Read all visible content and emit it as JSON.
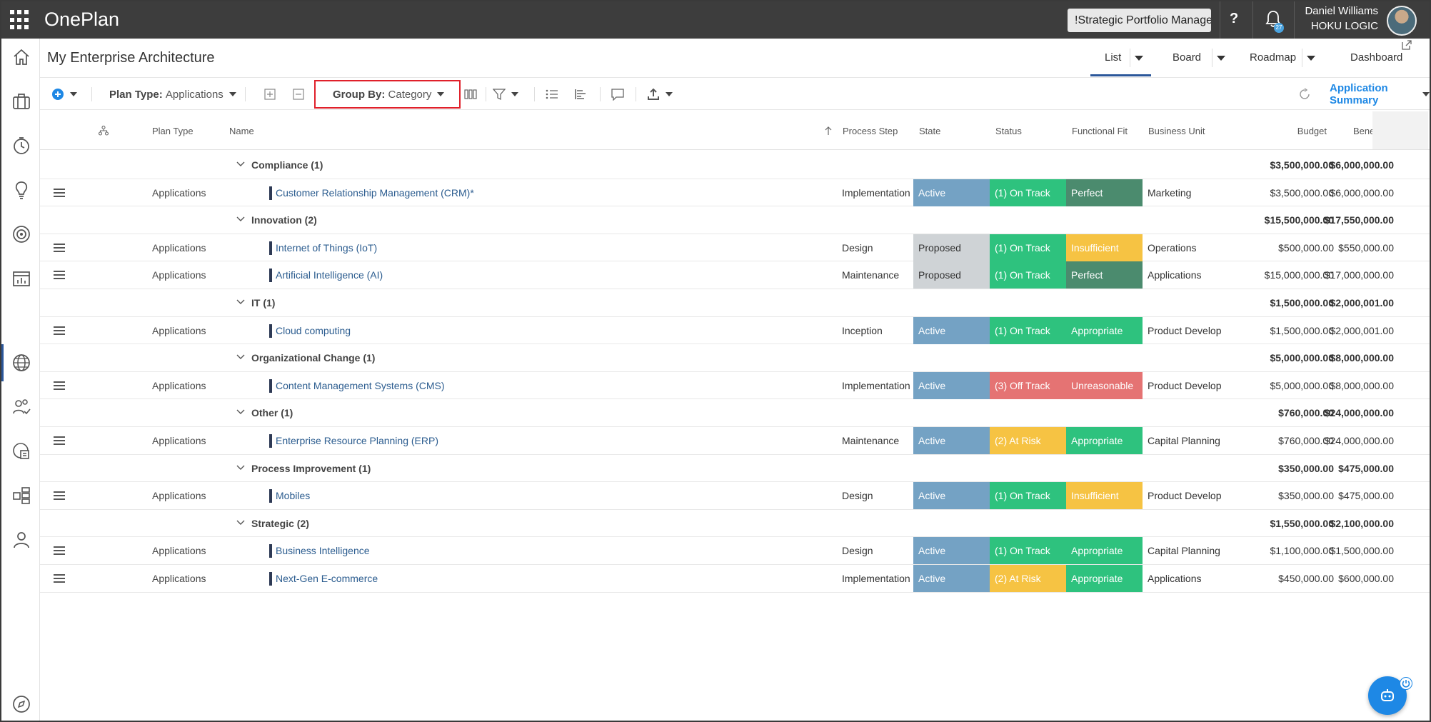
{
  "topbar": {
    "brand": "OnePlan",
    "scope": "!Strategic Portfolio Manager",
    "help": "?",
    "notification_count": "27",
    "user_name": "Daniel Williams",
    "user_org": "HOKU LOGIC"
  },
  "page": {
    "title": "My Enterprise Architecture",
    "views": [
      "List",
      "Board",
      "Roadmap",
      "Dashboard"
    ],
    "active_view": "List"
  },
  "toolbar": {
    "plan_type_label": "Plan Type:",
    "plan_type_value": "Applications",
    "group_by_label": "Group By:",
    "group_by_value": "Category",
    "summary": "Application Summary"
  },
  "columns": {
    "plan_type": "Plan Type",
    "name": "Name",
    "process_step": "Process Step",
    "state": "State",
    "status": "Status",
    "functional_fit": "Functional Fit",
    "business_unit": "Business Unit",
    "budget": "Budget",
    "benefits": "Benefits"
  },
  "colors": {
    "active": "#74a2c4",
    "proposed": "#cfd3d6",
    "on_track": "#2ec27e",
    "off_track": "#e57373",
    "at_risk": "#f6c343",
    "perfect": "#4b8b6e",
    "appropriate": "#2ec27e",
    "insufficient": "#f6c343",
    "unreasonable": "#e57373"
  },
  "rows": [
    {
      "kind": "group",
      "label": "Compliance (1)",
      "budget": "$3,500,000.00",
      "benefits": "$6,000,000.00"
    },
    {
      "kind": "item",
      "plan_type": "Applications",
      "name": "Customer Relationship Management (CRM)*",
      "process_step": "Implementation",
      "state": "Active",
      "state_color": "active",
      "status": "(1) On Track",
      "status_color": "on_track",
      "fit": "Perfect",
      "fit_color": "perfect",
      "unit": "Marketing",
      "budget": "$3,500,000.00",
      "benefits": "$6,000,000.00"
    },
    {
      "kind": "group",
      "label": "Innovation (2)",
      "budget": "$15,500,000.00",
      "benefits": "$17,550,000.00"
    },
    {
      "kind": "item",
      "plan_type": "Applications",
      "name": "Internet of Things (IoT)",
      "process_step": "Design",
      "state": "Proposed",
      "state_color": "proposed",
      "status": "(1) On Track",
      "status_color": "on_track",
      "fit": "Insufficient",
      "fit_color": "insufficient",
      "unit": "Operations",
      "budget": "$500,000.00",
      "benefits": "$550,000.00"
    },
    {
      "kind": "item",
      "plan_type": "Applications",
      "name": "Artificial Intelligence (AI)",
      "process_step": "Maintenance",
      "state": "Proposed",
      "state_color": "proposed",
      "status": "(1) On Track",
      "status_color": "on_track",
      "fit": "Perfect",
      "fit_color": "perfect",
      "unit": "Applications",
      "budget": "$15,000,000.00",
      "benefits": "$17,000,000.00"
    },
    {
      "kind": "group",
      "label": "IT (1)",
      "budget": "$1,500,000.00",
      "benefits": "$2,000,001.00"
    },
    {
      "kind": "item",
      "plan_type": "Applications",
      "name": "Cloud computing",
      "process_step": "Inception",
      "state": "Active",
      "state_color": "active",
      "status": "(1) On Track",
      "status_color": "on_track",
      "fit": "Appropriate",
      "fit_color": "appropriate",
      "unit": "Product Develop",
      "budget": "$1,500,000.00",
      "benefits": "$2,000,001.00"
    },
    {
      "kind": "group",
      "label": "Organizational Change (1)",
      "budget": "$5,000,000.00",
      "benefits": "$8,000,000.00"
    },
    {
      "kind": "item",
      "plan_type": "Applications",
      "name": "Content Management Systems (CMS)",
      "process_step": "Implementation",
      "state": "Active",
      "state_color": "active",
      "status": "(3) Off Track",
      "status_color": "off_track",
      "fit": "Unreasonable",
      "fit_color": "unreasonable",
      "unit": "Product Develop",
      "budget": "$5,000,000.00",
      "benefits": "$8,000,000.00"
    },
    {
      "kind": "group",
      "label": "Other (1)",
      "budget": "$760,000.00",
      "benefits": "$24,000,000.00"
    },
    {
      "kind": "item",
      "plan_type": "Applications",
      "name": "Enterprise Resource Planning (ERP)",
      "process_step": "Maintenance",
      "state": "Active",
      "state_color": "active",
      "status": "(2) At Risk",
      "status_color": "at_risk",
      "fit": "Appropriate",
      "fit_color": "appropriate",
      "unit": "Capital Planning",
      "budget": "$760,000.00",
      "benefits": "$24,000,000.00"
    },
    {
      "kind": "group",
      "label": "Process Improvement (1)",
      "budget": "$350,000.00",
      "benefits": "$475,000.00"
    },
    {
      "kind": "item",
      "plan_type": "Applications",
      "name": "Mobiles",
      "process_step": "Design",
      "state": "Active",
      "state_color": "active",
      "status": "(1) On Track",
      "status_color": "on_track",
      "fit": "Insufficient",
      "fit_color": "insufficient",
      "unit": "Product Develop",
      "budget": "$350,000.00",
      "benefits": "$475,000.00"
    },
    {
      "kind": "group",
      "label": "Strategic (2)",
      "budget": "$1,550,000.00",
      "benefits": "$2,100,000.00"
    },
    {
      "kind": "item",
      "plan_type": "Applications",
      "name": "Business Intelligence",
      "process_step": "Design",
      "state": "Active",
      "state_color": "active",
      "status": "(1) On Track",
      "status_color": "on_track",
      "fit": "Appropriate",
      "fit_color": "appropriate",
      "unit": "Capital Planning",
      "budget": "$1,100,000.00",
      "benefits": "$1,500,000.00"
    },
    {
      "kind": "item",
      "plan_type": "Applications",
      "name": "Next-Gen E-commerce",
      "process_step": "Implementation",
      "state": "Active",
      "state_color": "active",
      "status": "(2) At Risk",
      "status_color": "at_risk",
      "fit": "Appropriate",
      "fit_color": "appropriate",
      "unit": "Applications",
      "budget": "$450,000.00",
      "benefits": "$600,000.00"
    }
  ]
}
